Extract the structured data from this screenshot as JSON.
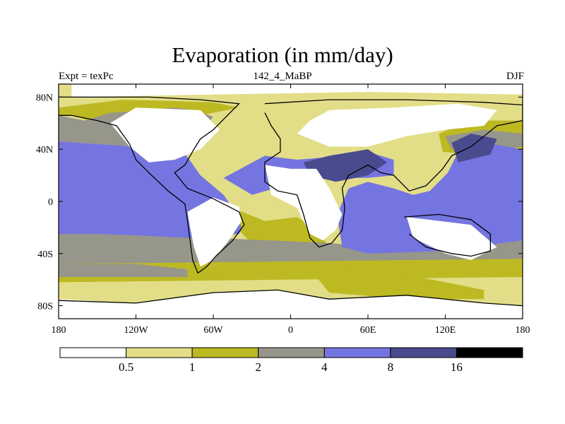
{
  "title": "Evaporation (in mm/day)",
  "left_label": "Expt = texPc",
  "center_label": "142_4_MaBP",
  "right_label": "DJF",
  "colors": {
    "c0": "#ffffff",
    "c1": "#e2de87",
    "c2": "#bdb923",
    "c3": "#97968a",
    "c4": "#7575e1",
    "c5": "#4a4a8f",
    "c6": "#000000"
  },
  "chart_data": {
    "type": "heatmap",
    "title": "Evaporation (in mm/day)",
    "xlim": [
      -180,
      180
    ],
    "ylim": [
      -90,
      90
    ],
    "x_ticks": [
      {
        "value": -180,
        "label": "180"
      },
      {
        "value": -120,
        "label": "120W"
      },
      {
        "value": -60,
        "label": "60W"
      },
      {
        "value": 0,
        "label": "0"
      },
      {
        "value": 60,
        "label": "60E"
      },
      {
        "value": 120,
        "label": "120E"
      },
      {
        "value": 180,
        "label": "180"
      }
    ],
    "y_ticks": [
      {
        "value": 80,
        "label": "80N"
      },
      {
        "value": 40,
        "label": "40N"
      },
      {
        "value": 0,
        "label": "0"
      },
      {
        "value": -40,
        "label": "40S"
      },
      {
        "value": -80,
        "label": "80S"
      }
    ],
    "colorbar": {
      "levels": [
        0.5,
        1,
        2,
        4,
        8,
        16
      ],
      "labels": [
        "0.5",
        "1",
        "2",
        "4",
        "8",
        "16"
      ],
      "colors": [
        "#ffffff",
        "#e2de87",
        "#bdb923",
        "#97968a",
        "#7575e1",
        "#4a4a8f",
        "#000000"
      ]
    },
    "regions": [
      {
        "name": "global-background",
        "level": 1,
        "points": [
          [
            -180,
            90
          ],
          [
            180,
            90
          ],
          [
            180,
            -90
          ],
          [
            -180,
            -90
          ]
        ]
      },
      {
        "name": "ocean-low",
        "level": 2,
        "points": [
          [
            -180,
            72
          ],
          [
            -130,
            78
          ],
          [
            -90,
            77
          ],
          [
            -60,
            76
          ],
          [
            -40,
            72
          ],
          [
            -60,
            68
          ],
          [
            -90,
            62
          ],
          [
            -115,
            56
          ],
          [
            -135,
            54
          ],
          [
            -150,
            60
          ],
          [
            -170,
            66
          ],
          [
            -180,
            66
          ]
        ]
      },
      {
        "name": "ocean-low",
        "level": 2,
        "points": [
          [
            -180,
            -32
          ],
          [
            -60,
            -38
          ],
          [
            0,
            -40
          ],
          [
            60,
            -42
          ],
          [
            120,
            -40
          ],
          [
            180,
            -38
          ],
          [
            180,
            -58
          ],
          [
            -180,
            -62
          ]
        ]
      },
      {
        "name": "ocean-low",
        "level": 2,
        "points": [
          [
            115,
            52
          ],
          [
            140,
            62
          ],
          [
            180,
            62
          ],
          [
            180,
            40
          ],
          [
            140,
            36
          ],
          [
            118,
            38
          ]
        ]
      },
      {
        "name": "ocean-low",
        "level": 2,
        "points": [
          [
            -45,
            -5
          ],
          [
            -20,
            -15
          ],
          [
            5,
            -12
          ],
          [
            20,
            -22
          ],
          [
            30,
            -35
          ],
          [
            20,
            -45
          ],
          [
            -5,
            -42
          ],
          [
            -25,
            -38
          ],
          [
            -40,
            -22
          ]
        ]
      },
      {
        "name": "ocean-low",
        "level": 2,
        "points": [
          [
            28,
            -45
          ],
          [
            60,
            -52
          ],
          [
            110,
            -60
          ],
          [
            150,
            -68
          ],
          [
            150,
            -75
          ],
          [
            90,
            -75
          ],
          [
            30,
            -70
          ],
          [
            20,
            -58
          ]
        ]
      },
      {
        "name": "ocean-mid",
        "level": 3,
        "points": [
          [
            -180,
            66
          ],
          [
            -160,
            62
          ],
          [
            -140,
            68
          ],
          [
            -110,
            70
          ],
          [
            -90,
            72
          ],
          [
            -75,
            70
          ],
          [
            -60,
            65
          ],
          [
            -68,
            55
          ],
          [
            -80,
            46
          ],
          [
            -120,
            42
          ],
          [
            -150,
            44
          ],
          [
            -180,
            46
          ]
        ]
      },
      {
        "name": "ocean-mid",
        "level": 3,
        "points": [
          [
            -180,
            -22
          ],
          [
            -60,
            -28
          ],
          [
            30,
            -32
          ],
          [
            80,
            -36
          ],
          [
            150,
            -34
          ],
          [
            180,
            -30
          ],
          [
            180,
            -44
          ],
          [
            -180,
            -48
          ]
        ]
      },
      {
        "name": "ocean-mid",
        "level": 3,
        "points": [
          [
            -180,
            -48
          ],
          [
            -120,
            -48
          ],
          [
            -80,
            -52
          ],
          [
            -80,
            -58
          ],
          [
            -180,
            -58
          ]
        ]
      },
      {
        "name": "ocean-mid",
        "level": 3,
        "points": [
          [
            120,
            50
          ],
          [
            150,
            55
          ],
          [
            180,
            52
          ],
          [
            180,
            42
          ],
          [
            150,
            38
          ],
          [
            125,
            40
          ]
        ]
      },
      {
        "name": "ocean-high",
        "level": 4,
        "points": [
          [
            -180,
            46
          ],
          [
            -150,
            44
          ],
          [
            -120,
            42
          ],
          [
            -90,
            44
          ],
          [
            -80,
            34
          ],
          [
            -70,
            20
          ],
          [
            -52,
            5
          ],
          [
            -45,
            -5
          ],
          [
            -38,
            -20
          ],
          [
            -40,
            -25
          ],
          [
            -80,
            -28
          ],
          [
            -120,
            -26
          ],
          [
            -150,
            -25
          ],
          [
            -180,
            -25
          ]
        ]
      },
      {
        "name": "ocean-high",
        "level": 4,
        "points": [
          [
            36,
            -10
          ],
          [
            40,
            -35
          ],
          [
            60,
            -40
          ],
          [
            120,
            -38
          ],
          [
            180,
            -30
          ],
          [
            180,
            40
          ],
          [
            150,
            45
          ],
          [
            130,
            38
          ],
          [
            122,
            22
          ],
          [
            108,
            8
          ],
          [
            95,
            5
          ],
          [
            80,
            10
          ],
          [
            60,
            15
          ],
          [
            45,
            10
          ]
        ]
      },
      {
        "name": "ocean-high",
        "level": 4,
        "points": [
          [
            -52,
            18
          ],
          [
            -20,
            35
          ],
          [
            5,
            32
          ],
          [
            30,
            34
          ],
          [
            60,
            38
          ],
          [
            80,
            32
          ],
          [
            80,
            20
          ],
          [
            60,
            18
          ],
          [
            40,
            18
          ],
          [
            20,
            20
          ],
          [
            -5,
            12
          ],
          [
            -30,
            5
          ]
        ]
      },
      {
        "name": "ocean-peak",
        "level": 5,
        "points": [
          [
            125,
            45
          ],
          [
            140,
            52
          ],
          [
            160,
            48
          ],
          [
            155,
            36
          ],
          [
            130,
            30
          ]
        ]
      },
      {
        "name": "ocean-peak",
        "level": 5,
        "points": [
          [
            10,
            30
          ],
          [
            30,
            35
          ],
          [
            60,
            40
          ],
          [
            75,
            30
          ],
          [
            60,
            20
          ],
          [
            35,
            15
          ],
          [
            15,
            20
          ]
        ]
      },
      {
        "name": "land",
        "level": 0,
        "points": [
          [
            -80,
            -8
          ],
          [
            -60,
            3
          ],
          [
            -40,
            -4
          ],
          [
            -38,
            -15
          ],
          [
            -48,
            -30
          ],
          [
            -60,
            -45
          ],
          [
            -70,
            -50
          ],
          [
            -75,
            -35
          ],
          [
            -78,
            -20
          ]
        ]
      },
      {
        "name": "land",
        "level": 0,
        "points": [
          [
            -20,
            28
          ],
          [
            0,
            25
          ],
          [
            20,
            25
          ],
          [
            30,
            10
          ],
          [
            40,
            -10
          ],
          [
            35,
            -22
          ],
          [
            25,
            -30
          ],
          [
            15,
            -25
          ],
          [
            5,
            -5
          ],
          [
            -15,
            5
          ]
        ]
      },
      {
        "name": "land",
        "level": 0,
        "points": [
          [
            90,
            -12
          ],
          [
            140,
            -18
          ],
          [
            160,
            -35
          ],
          [
            140,
            -45
          ],
          [
            120,
            -40
          ],
          [
            95,
            -28
          ]
        ]
      },
      {
        "name": "land",
        "level": 0,
        "points": [
          [
            -120,
            72
          ],
          [
            -70,
            70
          ],
          [
            -55,
            55
          ],
          [
            -70,
            40
          ],
          [
            -90,
            32
          ],
          [
            -110,
            30
          ],
          [
            -125,
            42
          ],
          [
            -140,
            60
          ]
        ]
      },
      {
        "name": "land",
        "level": 0,
        "points": [
          [
            30,
            70
          ],
          [
            80,
            72
          ],
          [
            130,
            75
          ],
          [
            160,
            70
          ],
          [
            150,
            58
          ],
          [
            120,
            55
          ],
          [
            90,
            50
          ],
          [
            60,
            42
          ],
          [
            30,
            42
          ],
          [
            5,
            52
          ],
          [
            15,
            62
          ]
        ]
      },
      {
        "name": "land",
        "level": 0,
        "points": [
          [
            -180,
            -75
          ],
          [
            -120,
            -78
          ],
          [
            -60,
            -70
          ],
          [
            -10,
            -68
          ],
          [
            30,
            -75
          ],
          [
            90,
            -72
          ],
          [
            150,
            -78
          ],
          [
            180,
            -80
          ],
          [
            180,
            -90
          ],
          [
            -180,
            -90
          ]
        ]
      },
      {
        "name": "land",
        "level": 0,
        "points": [
          [
            -170,
            90
          ],
          [
            180,
            90
          ],
          [
            180,
            82
          ],
          [
            60,
            84
          ],
          [
            -60,
            82
          ],
          [
            -170,
            80
          ]
        ]
      }
    ],
    "coastlines": [
      {
        "name": "americas-coast",
        "points": [
          [
            -180,
            80
          ],
          [
            -110,
            80
          ],
          [
            -70,
            78
          ],
          [
            -40,
            75
          ],
          [
            -55,
            60
          ],
          [
            -60,
            55
          ],
          [
            -70,
            48
          ],
          [
            -75,
            40
          ],
          [
            -82,
            28
          ],
          [
            -90,
            22
          ],
          [
            -80,
            10
          ],
          [
            -60,
            2
          ],
          [
            -40,
            -8
          ],
          [
            -36,
            -18
          ],
          [
            -45,
            -30
          ],
          [
            -58,
            -42
          ],
          [
            -65,
            -50
          ],
          [
            -72,
            -55
          ],
          [
            -76,
            -45
          ],
          [
            -78,
            -30
          ],
          [
            -80,
            -15
          ],
          [
            -82,
            -2
          ],
          [
            -95,
            8
          ],
          [
            -110,
            22
          ],
          [
            -120,
            32
          ],
          [
            -125,
            44
          ],
          [
            -135,
            58
          ],
          [
            -150,
            62
          ],
          [
            -170,
            66
          ],
          [
            -180,
            66
          ]
        ]
      },
      {
        "name": "eurasia-africa-coast",
        "points": [
          [
            -20,
            75
          ],
          [
            30,
            78
          ],
          [
            90,
            78
          ],
          [
            150,
            76
          ],
          [
            180,
            74
          ],
          [
            180,
            62
          ],
          [
            160,
            58
          ],
          [
            150,
            50
          ],
          [
            140,
            42
          ],
          [
            125,
            35
          ],
          [
            118,
            25
          ],
          [
            105,
            12
          ],
          [
            92,
            8
          ],
          [
            80,
            20
          ],
          [
            70,
            22
          ],
          [
            60,
            28
          ],
          [
            45,
            20
          ],
          [
            40,
            10
          ],
          [
            42,
            -5
          ],
          [
            40,
            -22
          ],
          [
            32,
            -32
          ],
          [
            22,
            -35
          ],
          [
            15,
            -28
          ],
          [
            10,
            -10
          ],
          [
            5,
            5
          ],
          [
            -10,
            8
          ],
          [
            -20,
            15
          ],
          [
            -20,
            30
          ],
          [
            -8,
            38
          ],
          [
            -8,
            48
          ],
          [
            -15,
            58
          ],
          [
            -20,
            68
          ]
        ]
      },
      {
        "name": "australia-coast",
        "points": [
          [
            88,
            -12
          ],
          [
            115,
            -10
          ],
          [
            140,
            -14
          ],
          [
            155,
            -25
          ],
          [
            155,
            -38
          ],
          [
            140,
            -42
          ],
          [
            125,
            -40
          ],
          [
            105,
            -35
          ],
          [
            92,
            -25
          ]
        ]
      },
      {
        "name": "antarctica-coast",
        "points": [
          [
            -180,
            -76
          ],
          [
            -120,
            -78
          ],
          [
            -60,
            -70
          ],
          [
            -10,
            -68
          ],
          [
            30,
            -75
          ],
          [
            90,
            -72
          ],
          [
            150,
            -78
          ],
          [
            180,
            -80
          ]
        ]
      }
    ]
  }
}
